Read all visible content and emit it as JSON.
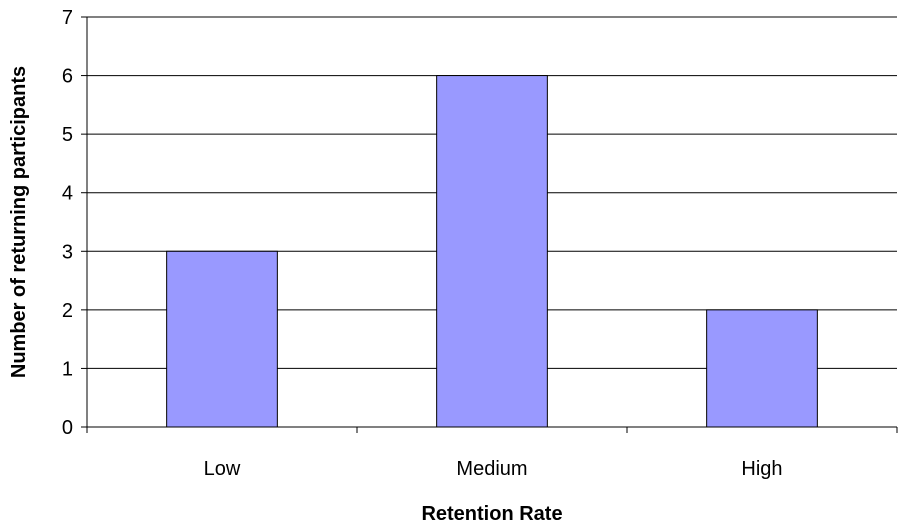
{
  "chart_data": {
    "type": "bar",
    "title": "",
    "xlabel": "Retention Rate",
    "ylabel": "Number of returning participants",
    "categories": [
      "Low",
      "Medium",
      "High"
    ],
    "series": [
      {
        "values": [
          3,
          6,
          2
        ]
      }
    ],
    "ylim": [
      0,
      7
    ],
    "yticks": [
      "0",
      "1",
      "2",
      "3",
      "4",
      "5",
      "6",
      "7"
    ],
    "grid": true,
    "legend": "none",
    "bar_color": "#9999ff",
    "bar_stroke": "#000000"
  }
}
